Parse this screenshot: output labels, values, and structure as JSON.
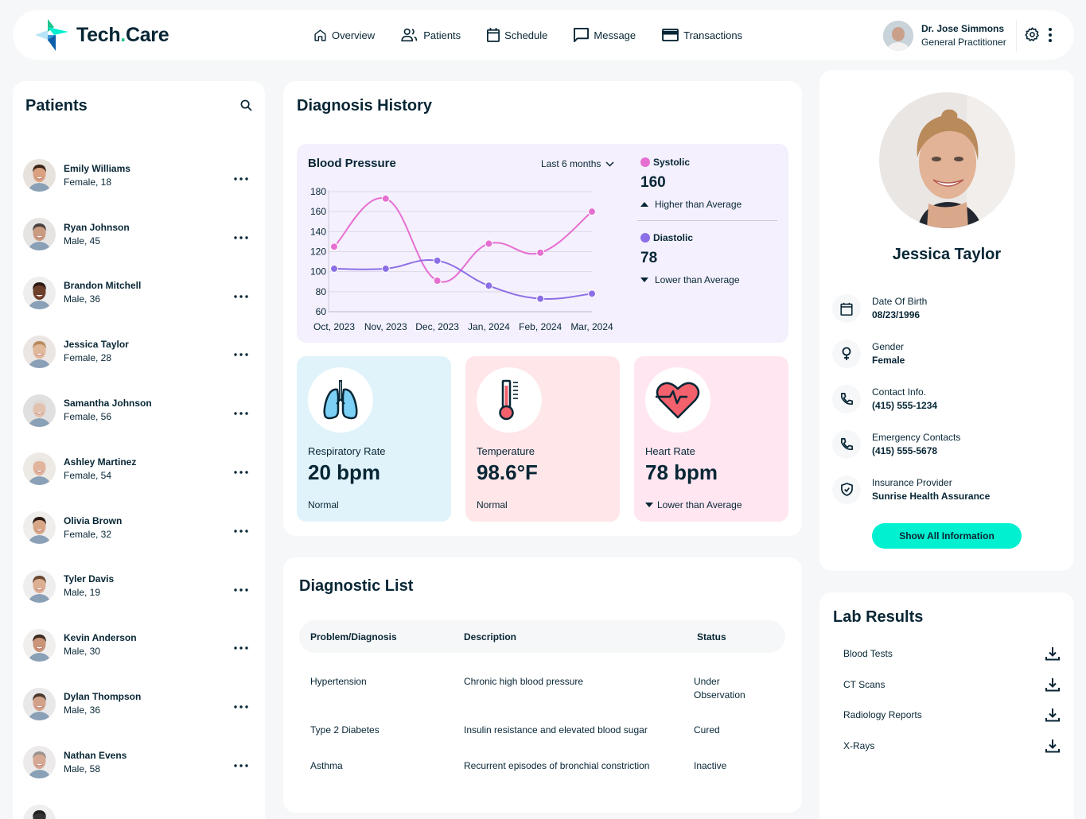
{
  "header": {
    "brand_main": "Tech",
    "brand_dot": ".",
    "brand_tail": "Care",
    "nav": [
      {
        "label": "Overview",
        "icon": "home-icon"
      },
      {
        "label": "Patients",
        "icon": "users-icon"
      },
      {
        "label": "Schedule",
        "icon": "calendar-icon"
      },
      {
        "label": "Message",
        "icon": "message-icon"
      },
      {
        "label": "Transactions",
        "icon": "credit-card-icon"
      }
    ],
    "doctor": {
      "name": "Dr. Jose Simmons",
      "role": "General Practitioner"
    }
  },
  "patients": {
    "title": "Patients",
    "list": [
      {
        "name": "Emily Williams",
        "sub": "Female, 18",
        "skin": "#d9a17f",
        "hair": "#3a2518",
        "bg": "#e8e2dc"
      },
      {
        "name": "Ryan Johnson",
        "sub": "Male, 45",
        "skin": "#c99a80",
        "hair": "#4a4140",
        "bg": "#e6e4e3"
      },
      {
        "name": "Brandon Mitchell",
        "sub": "Male, 36",
        "skin": "#6b3f2a",
        "hair": "#2b1a12",
        "bg": "#eeeeee"
      },
      {
        "name": "Jessica Taylor",
        "sub": "Female, 28",
        "skin": "#e0b89a",
        "hair": "#b98b5d",
        "bg": "#ebe5e4"
      },
      {
        "name": "Samantha Johnson",
        "sub": "Female, 56",
        "skin": "#e2c2ae",
        "hair": "#dcd9d6",
        "bg": "#e0e0e0"
      },
      {
        "name": "Ashley Martinez",
        "sub": "Female, 54",
        "skin": "#e2b49d",
        "hair": "#e8e4e0",
        "bg": "#ede9e5"
      },
      {
        "name": "Olivia Brown",
        "sub": "Female, 32",
        "skin": "#d7a686",
        "hair": "#2a1a14",
        "bg": "#efeeec"
      },
      {
        "name": "Tyler Davis",
        "sub": "Male, 19",
        "skin": "#dcae92",
        "hair": "#6b4a32",
        "bg": "#eeeeee"
      },
      {
        "name": "Kevin Anderson",
        "sub": "Male, 30",
        "skin": "#c99478",
        "hair": "#3a2a20",
        "bg": "#f0efee"
      },
      {
        "name": "Dylan Thompson",
        "sub": "Male, 36",
        "skin": "#d2a188",
        "hair": "#4a3a30",
        "bg": "#e8e8e8"
      },
      {
        "name": "Nathan Evens",
        "sub": "Male, 58",
        "skin": "#d7a994",
        "hair": "#9c958f",
        "bg": "#eceaea"
      },
      {
        "name": "",
        "sub": "",
        "skin": "#333",
        "hair": "#222",
        "bg": "#eee"
      }
    ]
  },
  "diagnosis_history": {
    "title": "Diagnosis History",
    "bp_title": "Blood Pressure",
    "range": "Last 6 months",
    "systolic": {
      "label": "Systolic",
      "value": "160",
      "trend": "Higher than Average",
      "color": "#E66FD2"
    },
    "diastolic": {
      "label": "Diastolic",
      "value": "78",
      "trend": "Lower than Average",
      "color": "#8C6FE6"
    },
    "vitals": [
      {
        "label": "Respiratory Rate",
        "value": "20 bpm",
        "note": "Normal",
        "bg": "#E0F3FA",
        "icon": "lungs-icon"
      },
      {
        "label": "Temperature",
        "value": "98.6°F",
        "note": "Normal",
        "bg": "#FFE6E9",
        "icon": "thermometer-icon"
      },
      {
        "label": "Heart Rate",
        "value": "78 bpm",
        "note": "Lower than Average",
        "bg": "#FFE6F1",
        "icon": "heart-icon"
      }
    ]
  },
  "chart_data": {
    "type": "line",
    "title": "Blood Pressure",
    "categories": [
      "Oct, 2023",
      "Nov, 2023",
      "Dec, 2023",
      "Jan, 2024",
      "Feb, 2024",
      "Mar, 2024"
    ],
    "series": [
      {
        "name": "Systolic",
        "values": [
          125,
          173,
          91,
          128,
          119,
          160
        ],
        "color": "#E66FD2"
      },
      {
        "name": "Diastolic",
        "values": [
          103,
          103,
          111,
          86,
          73,
          78
        ],
        "color": "#8C6FE6"
      }
    ],
    "yticks": [
      60,
      80,
      100,
      120,
      140,
      160,
      180
    ],
    "ylim": [
      60,
      180
    ],
    "grid": true,
    "legend_position": "right"
  },
  "diagnostic_list": {
    "title": "Diagnostic List",
    "columns": [
      "Problem/Diagnosis",
      "Description",
      "Status"
    ],
    "rows": [
      [
        "Hypertension",
        "Chronic high blood pressure",
        "Under Observation"
      ],
      [
        "Type 2 Diabetes",
        "Insulin resistance and elevated blood sugar",
        "Cured"
      ],
      [
        "Asthma",
        "Recurrent episodes of bronchial constriction",
        "Inactive"
      ]
    ]
  },
  "profile": {
    "name": "Jessica Taylor",
    "fields": [
      {
        "label": "Date Of Birth",
        "value": "08/23/1996",
        "icon": "calendar-icon"
      },
      {
        "label": "Gender",
        "value": "Female",
        "icon": "female-icon"
      },
      {
        "label": "Contact Info.",
        "value": "(415) 555-1234",
        "icon": "phone-icon"
      },
      {
        "label": "Emergency Contacts",
        "value": "(415) 555-5678",
        "icon": "phone-icon"
      },
      {
        "label": "Insurance Provider",
        "value": "Sunrise Health Assurance",
        "icon": "shield-icon"
      }
    ],
    "button": "Show All Information"
  },
  "lab_results": {
    "title": "Lab Results",
    "items": [
      "Blood Tests",
      "CT Scans",
      "Radiology Reports",
      "X-Rays"
    ]
  },
  "colors": {
    "accent": "#01F0D0",
    "text": "#072635",
    "bg": "#F6F7F8",
    "bp_panel": "#F4F0FE"
  }
}
